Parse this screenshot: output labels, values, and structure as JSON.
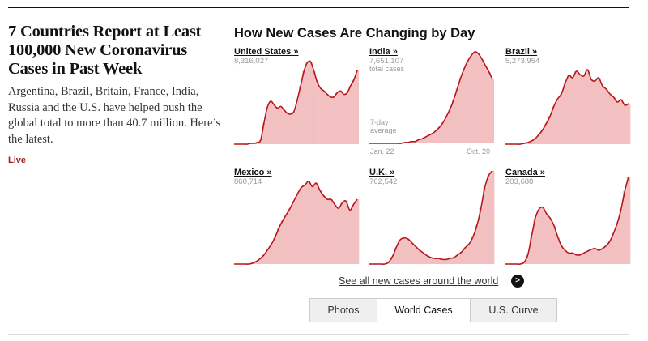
{
  "article": {
    "headline": "7 Countries Report at Least 100,000 New Coronavirus Cases in Past Week",
    "summary": "Argentina, Brazil, Britain, France, India, Russia and the U.S. have helped push the global total to more than 40.7 million. Here’s the latest.",
    "live_label": "Live"
  },
  "section": {
    "title": "How New Cases Are Changing by Day",
    "see_all": "See all new cases around the world",
    "see_all_icon": "chevron-right-icon",
    "tabs": [
      {
        "label": "Photos",
        "active": false
      },
      {
        "label": "World Cases",
        "active": true
      },
      {
        "label": "U.S. Curve",
        "active": false
      }
    ]
  },
  "colors": {
    "line": "#b5161b",
    "fill": "#f2c0c0",
    "live": "#a11a1a"
  },
  "annotations": {
    "avg_line1": "7-day",
    "avg_line2": "average",
    "date_start": "Jan. 22",
    "date_end": "Oct. 20"
  },
  "chart_data": [
    {
      "type": "area",
      "title": "United States »",
      "subtitle": "8,316,027",
      "y_relative": [
        0,
        0,
        0,
        0,
        0,
        0.01,
        0.01,
        0.02,
        0.05,
        0.25,
        0.43,
        0.5,
        0.46,
        0.42,
        0.44,
        0.4,
        0.36,
        0.35,
        0.38,
        0.52,
        0.68,
        0.85,
        0.95,
        0.96,
        0.85,
        0.72,
        0.65,
        0.62,
        0.58,
        0.55,
        0.55,
        0.6,
        0.62,
        0.58,
        0.6,
        0.68,
        0.75,
        0.86
      ]
    },
    {
      "type": "area",
      "title": "India »",
      "subtitle": "7,651,107",
      "note": "total cases",
      "y_relative": [
        0,
        0,
        0,
        0,
        0,
        0,
        0,
        0,
        0,
        0,
        0.01,
        0.01,
        0.02,
        0.02,
        0.04,
        0.05,
        0.07,
        0.09,
        0.11,
        0.14,
        0.18,
        0.23,
        0.3,
        0.38,
        0.48,
        0.6,
        0.72,
        0.82,
        0.9,
        0.96,
        1.0,
        0.98,
        0.92,
        0.85,
        0.78,
        0.7
      ]
    },
    {
      "type": "area",
      "title": "Brazil »",
      "subtitle": "5,273,954",
      "y_relative": [
        0,
        0,
        0,
        0,
        0,
        0.01,
        0.02,
        0.04,
        0.07,
        0.12,
        0.18,
        0.26,
        0.35,
        0.47,
        0.56,
        0.62,
        0.75,
        0.85,
        0.82,
        0.9,
        0.86,
        0.84,
        0.92,
        0.8,
        0.78,
        0.82,
        0.72,
        0.68,
        0.62,
        0.58,
        0.52,
        0.55,
        0.48,
        0.5
      ]
    },
    {
      "type": "area",
      "title": "Mexico »",
      "subtitle": "860,714",
      "y_relative": [
        0,
        0,
        0,
        0,
        0,
        0.01,
        0.03,
        0.06,
        0.1,
        0.16,
        0.22,
        0.3,
        0.4,
        0.48,
        0.55,
        0.62,
        0.7,
        0.78,
        0.85,
        0.88,
        0.92,
        0.86,
        0.9,
        0.82,
        0.76,
        0.72,
        0.72,
        0.66,
        0.62,
        0.68,
        0.7,
        0.6,
        0.66,
        0.72
      ]
    },
    {
      "type": "area",
      "title": "U.K. »",
      "subtitle": "762,542",
      "y_relative": [
        0,
        0,
        0,
        0,
        0,
        0.02,
        0.08,
        0.18,
        0.26,
        0.28,
        0.27,
        0.23,
        0.19,
        0.15,
        0.12,
        0.09,
        0.07,
        0.06,
        0.06,
        0.05,
        0.05,
        0.06,
        0.07,
        0.1,
        0.13,
        0.18,
        0.22,
        0.3,
        0.42,
        0.6,
        0.82,
        0.95,
        1.0
      ]
    },
    {
      "type": "area",
      "title": "Canada »",
      "subtitle": "203,688",
      "y_relative": [
        0,
        0,
        0,
        0,
        0,
        0.02,
        0.1,
        0.3,
        0.5,
        0.6,
        0.62,
        0.55,
        0.5,
        0.42,
        0.3,
        0.2,
        0.15,
        0.12,
        0.12,
        0.1,
        0.1,
        0.12,
        0.14,
        0.16,
        0.17,
        0.15,
        0.17,
        0.2,
        0.25,
        0.34,
        0.45,
        0.6,
        0.8,
        0.95
      ]
    }
  ]
}
